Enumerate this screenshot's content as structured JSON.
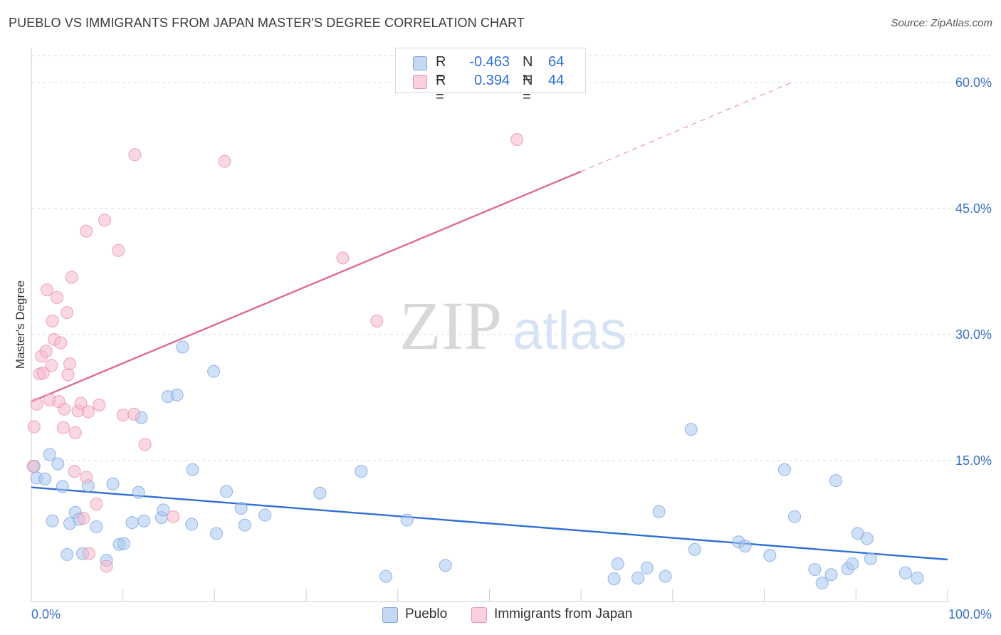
{
  "title": "PUEBLO VS IMMIGRANTS FROM JAPAN MASTER'S DEGREE CORRELATION CHART",
  "source": "Source: ZipAtlas.com",
  "watermark": {
    "zip": "ZIP",
    "atlas": "atlas"
  },
  "legend": {
    "rows": [
      {
        "r_label": "R =",
        "r_value": "-0.463",
        "n_label": "N =",
        "n_value": "64",
        "color": "#a9c8f0"
      },
      {
        "r_label": "R =",
        "r_value": "0.394",
        "n_label": "N =",
        "n_value": "44",
        "color": "#f6b8cb"
      }
    ]
  },
  "bottom_legend": [
    "Pueblo",
    "Immigrants from Japan"
  ],
  "colors": {
    "pueblo_fill": "#a9c8f0",
    "pueblo_stroke": "#7aa6e0",
    "pueblo_line": "#2f6fd6",
    "japan_fill": "#f6b8cb",
    "japan_stroke": "#ea8fab",
    "japan_line": "#e06a92",
    "tick_label": "#3b72c9",
    "grid": "#dcdcdc"
  },
  "chart_data": {
    "type": "scatter",
    "title": "PUEBLO VS IMMIGRANTS FROM JAPAN MASTER'S DEGREE CORRELATION CHART",
    "xlabel": "",
    "ylabel": "Master's Degree",
    "xlim": [
      0,
      100
    ],
    "ylim": [
      0,
      60
    ],
    "x_tick_labels": [
      "0.0%",
      "100.0%"
    ],
    "y_ticks": [
      15,
      30,
      45,
      60
    ],
    "y_tick_labels": [
      "15.0%",
      "30.0%",
      "45.0%",
      "60.0%"
    ],
    "grid": true,
    "legend_position": "top-center",
    "series": [
      {
        "name": "Pueblo",
        "points": [
          [
            0.3,
            14.3
          ],
          [
            0.6,
            12.9
          ],
          [
            1.5,
            12.8
          ],
          [
            2.0,
            15.7
          ],
          [
            2.3,
            7.8
          ],
          [
            2.9,
            14.6
          ],
          [
            3.4,
            11.9
          ],
          [
            3.9,
            3.8
          ],
          [
            4.2,
            7.5
          ],
          [
            4.8,
            8.8
          ],
          [
            5.2,
            8.0
          ],
          [
            5.6,
            3.9
          ],
          [
            6.2,
            12.0
          ],
          [
            7.1,
            7.1
          ],
          [
            8.2,
            3.1
          ],
          [
            8.9,
            12.2
          ],
          [
            9.6,
            5.0
          ],
          [
            10.1,
            5.1
          ],
          [
            11.0,
            7.6
          ],
          [
            11.7,
            11.2
          ],
          [
            12.3,
            7.8
          ],
          [
            14.2,
            8.2
          ],
          [
            14.4,
            9.1
          ],
          [
            14.9,
            22.6
          ],
          [
            15.9,
            22.8
          ],
          [
            16.5,
            28.5
          ],
          [
            17.5,
            7.4
          ],
          [
            17.6,
            13.9
          ],
          [
            19.9,
            25.6
          ],
          [
            20.2,
            6.3
          ],
          [
            21.3,
            11.3
          ],
          [
            22.9,
            9.3
          ],
          [
            23.3,
            7.3
          ],
          [
            25.5,
            8.5
          ],
          [
            31.5,
            11.1
          ],
          [
            36.0,
            13.7
          ],
          [
            38.7,
            1.2
          ],
          [
            41.0,
            7.9
          ],
          [
            45.2,
            2.5
          ],
          [
            63.6,
            0.9
          ],
          [
            64.0,
            2.7
          ],
          [
            66.2,
            1.0
          ],
          [
            67.2,
            2.2
          ],
          [
            68.5,
            8.9
          ],
          [
            69.2,
            1.2
          ],
          [
            72.0,
            18.7
          ],
          [
            72.4,
            4.4
          ],
          [
            77.2,
            5.3
          ],
          [
            77.9,
            4.8
          ],
          [
            80.6,
            3.7
          ],
          [
            82.2,
            13.9
          ],
          [
            83.3,
            8.3
          ],
          [
            85.5,
            2.0
          ],
          [
            86.3,
            0.4
          ],
          [
            87.3,
            1.4
          ],
          [
            87.8,
            12.6
          ],
          [
            89.1,
            2.1
          ],
          [
            89.6,
            2.7
          ],
          [
            90.2,
            6.3
          ],
          [
            91.2,
            5.7
          ],
          [
            91.6,
            3.3
          ],
          [
            95.4,
            1.6
          ],
          [
            96.7,
            1.0
          ],
          [
            12.0,
            20.1
          ]
        ]
      },
      {
        "name": "Immigrants from Japan",
        "points": [
          [
            0.2,
            14.3
          ],
          [
            0.3,
            19.0
          ],
          [
            0.6,
            21.7
          ],
          [
            0.9,
            25.3
          ],
          [
            1.1,
            27.4
          ],
          [
            1.3,
            25.4
          ],
          [
            1.6,
            28.0
          ],
          [
            1.7,
            35.3
          ],
          [
            2.0,
            22.2
          ],
          [
            2.2,
            26.3
          ],
          [
            2.3,
            31.6
          ],
          [
            2.5,
            29.4
          ],
          [
            2.8,
            34.4
          ],
          [
            3.0,
            22.0
          ],
          [
            3.2,
            29.0
          ],
          [
            3.5,
            18.9
          ],
          [
            3.6,
            21.1
          ],
          [
            3.9,
            32.6
          ],
          [
            4.0,
            25.2
          ],
          [
            4.2,
            26.5
          ],
          [
            4.4,
            36.8
          ],
          [
            4.7,
            13.7
          ],
          [
            4.8,
            18.3
          ],
          [
            5.1,
            20.9
          ],
          [
            5.4,
            21.8
          ],
          [
            5.7,
            8.1
          ],
          [
            6.0,
            13.0
          ],
          [
            6.2,
            20.8
          ],
          [
            6.3,
            3.9
          ],
          [
            7.1,
            9.8
          ],
          [
            7.4,
            21.6
          ],
          [
            8.0,
            43.6
          ],
          [
            8.2,
            2.4
          ],
          [
            9.5,
            40.0
          ],
          [
            10.0,
            20.4
          ],
          [
            11.2,
            20.5
          ],
          [
            11.3,
            51.4
          ],
          [
            12.4,
            16.9
          ],
          [
            15.5,
            8.3
          ],
          [
            21.1,
            50.6
          ],
          [
            34.0,
            39.1
          ],
          [
            37.7,
            31.6
          ],
          [
            53.0,
            53.2
          ],
          [
            6.0,
            42.3
          ]
        ]
      }
    ],
    "trend_lines": [
      {
        "name": "Pueblo",
        "x": [
          0,
          100
        ],
        "y": [
          11.8,
          3.2
        ]
      },
      {
        "name": "Immigrants from Japan",
        "x": [
          0,
          60
        ],
        "y": [
          22.0,
          49.4
        ],
        "dashed_extension_x": [
          60,
          83
        ],
        "dashed_extension_y": [
          49.4,
          60.0
        ]
      }
    ]
  }
}
